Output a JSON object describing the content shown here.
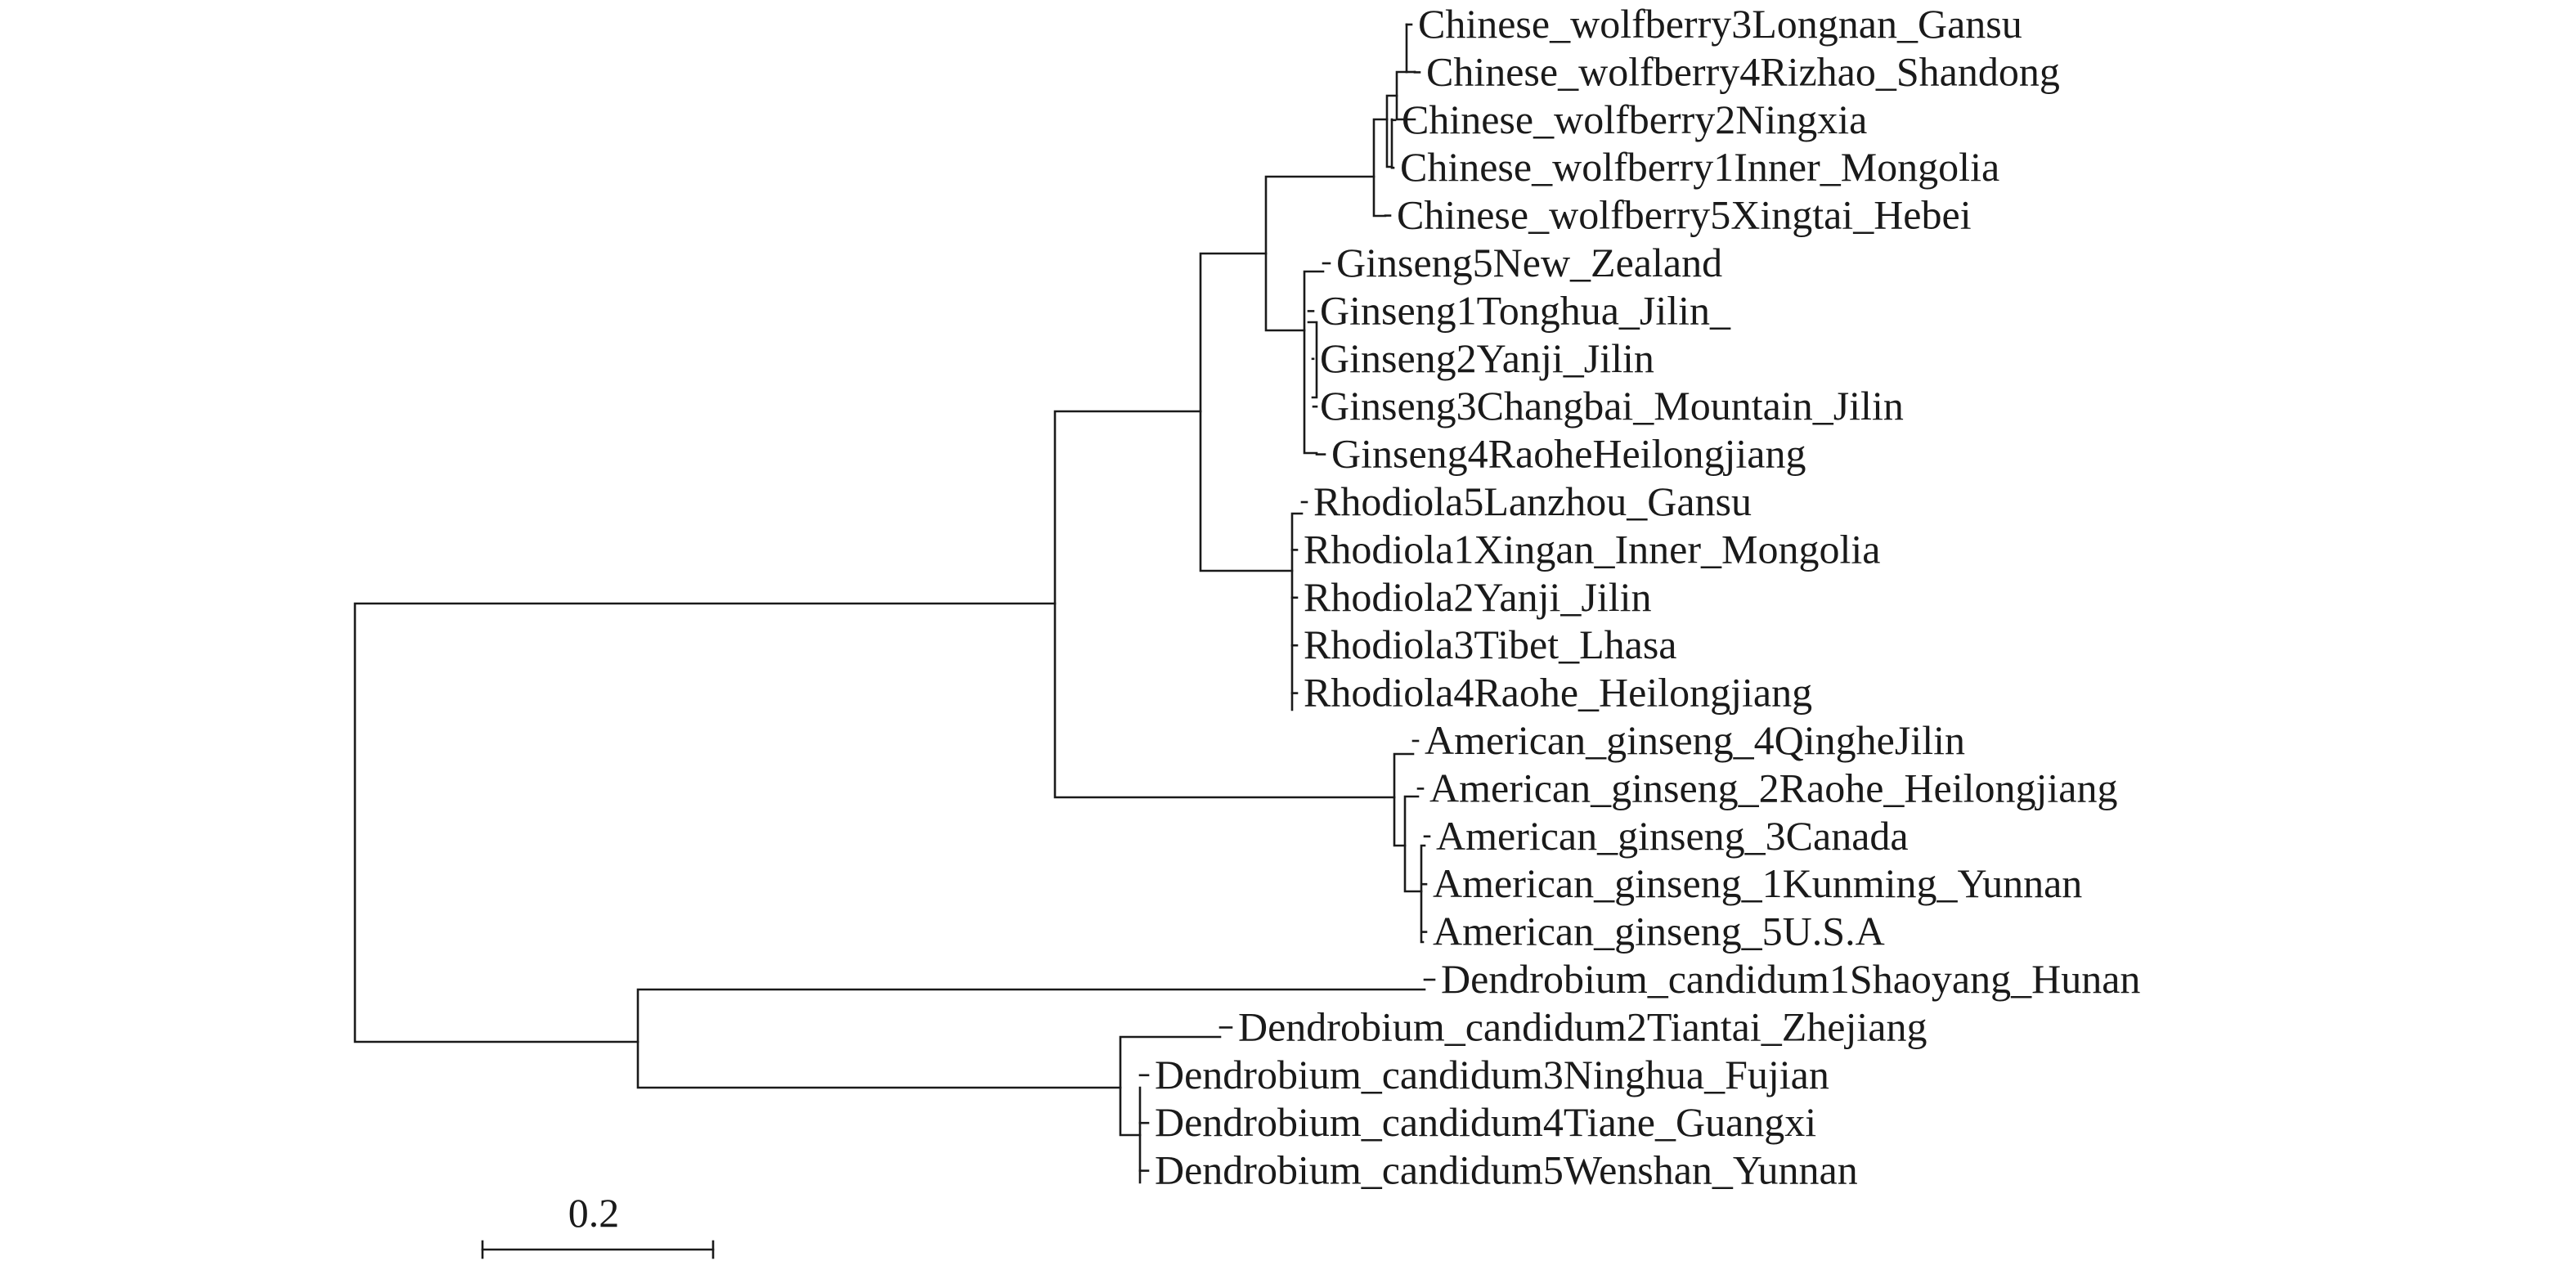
{
  "tree": {
    "leaves": [
      "Chinese_wolfberry3Longnan_Gansu",
      "Chinese_wolfberry4Rizhao_Shandong",
      "Chinese_wolfberry2Ningxia",
      "Chinese_wolfberry1Inner_Mongolia",
      "Chinese_wolfberry5Xingtai_Hebei",
      "Ginseng5New_Zealand",
      "Ginseng1Tonghua_Jilin_",
      "Ginseng2Yanji_Jilin",
      "Ginseng3Changbai_Mountain_Jilin",
      "Ginseng4RaoheHeilongjiang",
      "Rhodiola5Lanzhou_Gansu",
      "Rhodiola1Xingan_Inner_Mongolia",
      "Rhodiola2Yanji_Jilin",
      "Rhodiola3Tibet_Lhasa",
      "Rhodiola4Raohe_Heilongjiang",
      "American_ginseng_4QingheJilin",
      "American_ginseng_2Raohe_Heilongjiang",
      "American_ginseng_3Canada",
      "American_ginseng_1Kunming_Yunnan",
      "American_ginseng_5U.S.A",
      "Dendrobium_candidum1Shaoyang_Hunan",
      "Dendrobium_candidum2Tiantai_Zhejiang",
      "Dendrobium_candidum3Ninghua_Fujian",
      "Dendrobium_candidum4Tiane_Guangxi",
      "Dendrobium_candidum5Wenshan_Yunnan"
    ],
    "scale_bar": {
      "label": "0.2",
      "length": 0.2
    }
  }
}
